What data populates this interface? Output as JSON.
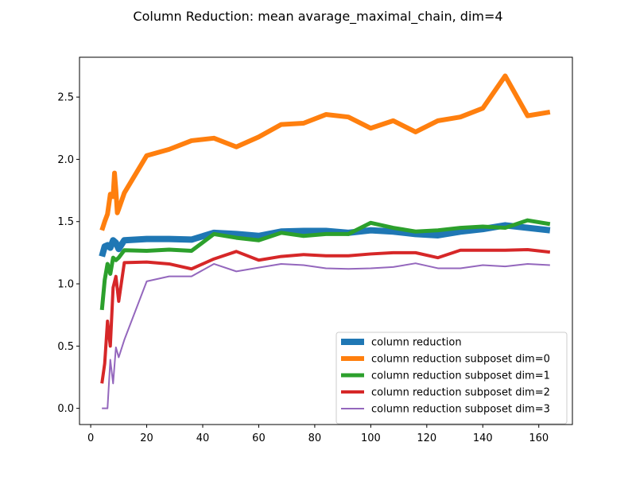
{
  "chart_data": {
    "type": "line",
    "title": "Column Reduction: mean avarage_maximal_chain, dim=4",
    "xlabel": "",
    "ylabel": "",
    "xlim": [
      -4,
      172
    ],
    "ylim": [
      -0.13,
      2.82
    ],
    "xticks": [
      0,
      20,
      40,
      60,
      80,
      100,
      120,
      140,
      160
    ],
    "yticks": [
      0.0,
      0.5,
      1.0,
      1.5,
      2.0,
      2.5
    ],
    "ytick_labels": [
      "0.0",
      "0.5",
      "1.0",
      "1.5",
      "2.0",
      "2.5"
    ],
    "grid": false,
    "legend_position": "lower right",
    "series": [
      {
        "name": "column reduction",
        "color": "#1f77b4",
        "line_width": 8,
        "x": [
          4,
          5,
          6,
          7,
          8,
          9,
          10,
          12,
          20,
          28,
          36,
          44,
          52,
          60,
          68,
          76,
          84,
          92,
          100,
          108,
          116,
          124,
          132,
          140,
          148,
          156,
          164
        ],
        "y": [
          1.22,
          1.3,
          1.31,
          1.29,
          1.35,
          1.33,
          1.28,
          1.35,
          1.36,
          1.36,
          1.355,
          1.41,
          1.4,
          1.385,
          1.42,
          1.425,
          1.425,
          1.41,
          1.43,
          1.42,
          1.4,
          1.39,
          1.42,
          1.44,
          1.47,
          1.45,
          1.43
        ]
      },
      {
        "name": "column reduction subposet dim=0",
        "color": "#ff7f0e",
        "line_width": 6,
        "x": [
          4,
          5,
          6,
          7,
          8,
          8.5,
          9,
          9.5,
          10,
          12,
          20,
          28,
          36,
          44,
          52,
          60,
          68,
          76,
          84,
          92,
          100,
          108,
          116,
          124,
          132,
          140,
          148,
          156,
          164
        ],
        "y": [
          1.43,
          1.5,
          1.56,
          1.72,
          1.7,
          1.89,
          1.75,
          1.57,
          1.6,
          1.73,
          2.03,
          2.08,
          2.15,
          2.17,
          2.1,
          2.18,
          2.28,
          2.29,
          2.36,
          2.34,
          2.25,
          2.31,
          2.22,
          2.31,
          2.34,
          2.41,
          2.67,
          2.35,
          2.38
        ]
      },
      {
        "name": "column reduction subposet dim=1",
        "color": "#2ca02c",
        "line_width": 5,
        "x": [
          4,
          5,
          6,
          7,
          8,
          9,
          10,
          12,
          20,
          28,
          36,
          44,
          52,
          60,
          68,
          76,
          84,
          92,
          100,
          108,
          116,
          124,
          132,
          140,
          148,
          156,
          164
        ],
        "y": [
          0.79,
          1.03,
          1.16,
          1.08,
          1.21,
          1.19,
          1.21,
          1.27,
          1.265,
          1.275,
          1.265,
          1.4,
          1.37,
          1.35,
          1.41,
          1.385,
          1.4,
          1.4,
          1.49,
          1.45,
          1.42,
          1.43,
          1.45,
          1.46,
          1.45,
          1.51,
          1.48
        ]
      },
      {
        "name": "column reduction subposet dim=2",
        "color": "#d62728",
        "line_width": 4,
        "x": [
          4,
          5,
          6,
          7,
          8,
          9,
          10,
          12,
          20,
          28,
          36,
          44,
          52,
          60,
          68,
          76,
          84,
          92,
          100,
          108,
          116,
          124,
          132,
          140,
          148,
          156,
          164
        ],
        "y": [
          0.2,
          0.36,
          0.7,
          0.5,
          0.97,
          1.06,
          0.86,
          1.17,
          1.175,
          1.16,
          1.12,
          1.2,
          1.26,
          1.19,
          1.22,
          1.235,
          1.225,
          1.225,
          1.24,
          1.25,
          1.25,
          1.21,
          1.27,
          1.27,
          1.27,
          1.275,
          1.255
        ]
      },
      {
        "name": "column reduction subposet dim=3",
        "color": "#9467bd",
        "line_width": 2,
        "x": [
          4,
          6,
          7,
          8,
          9,
          10,
          12,
          20,
          28,
          36,
          44,
          52,
          60,
          68,
          76,
          84,
          92,
          100,
          108,
          116,
          124,
          132,
          140,
          148,
          156,
          164
        ],
        "y": [
          0.0,
          0.0,
          0.39,
          0.2,
          0.49,
          0.41,
          0.55,
          1.02,
          1.06,
          1.06,
          1.16,
          1.1,
          1.13,
          1.16,
          1.15,
          1.125,
          1.12,
          1.125,
          1.135,
          1.165,
          1.125,
          1.125,
          1.15,
          1.14,
          1.16,
          1.15
        ]
      }
    ]
  }
}
